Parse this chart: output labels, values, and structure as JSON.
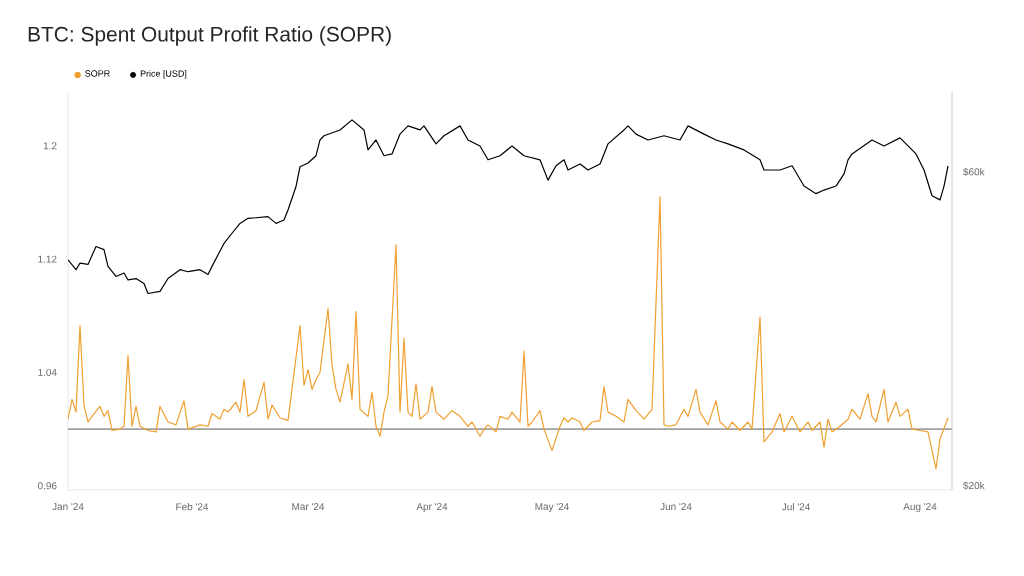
{
  "chart_data": {
    "type": "line",
    "title": "BTC: Spent Output Profit Ratio (SOPR)",
    "xlim": [
      "2024-01-01",
      "2024-08-09"
    ],
    "xticks": [
      {
        "value": "2024-01-01",
        "label": "Jan '24"
      },
      {
        "value": "2024-02-01",
        "label": "Feb '24"
      },
      {
        "value": "2024-03-01",
        "label": "Mar '24"
      },
      {
        "value": "2024-04-01",
        "label": "Apr '24"
      },
      {
        "value": "2024-05-01",
        "label": "May '24"
      },
      {
        "value": "2024-06-01",
        "label": "Jun '24"
      },
      {
        "value": "2024-07-01",
        "label": "Jul '24"
      },
      {
        "value": "2024-08-01",
        "label": "Aug '24"
      }
    ],
    "ylim": [
      0.957,
      1.238
    ],
    "yticks": [
      0.96,
      1.04,
      1.12,
      1.2
    ],
    "y2lim": [
      19700,
      79400
    ],
    "y2ticks": [
      {
        "value": 20000,
        "label": "$20k"
      },
      {
        "value": 60000,
        "label": "$60k"
      }
    ],
    "log": "y2",
    "legend": "top left",
    "ref_lines": [
      {
        "axis": "y",
        "value": 1,
        "color": "#a0a0a0"
      }
    ],
    "series": [
      {
        "name": "SOPR",
        "color": "#f0a030",
        "x": [
          "2024-01-01",
          "2024-01-02",
          "2024-01-03",
          "2024-01-04",
          "2024-01-05",
          "2024-01-06",
          "2024-01-07",
          "2024-01-09",
          "2024-01-10",
          "2024-01-11",
          "2024-01-12",
          "2024-01-14",
          "2024-01-15",
          "2024-01-16",
          "2024-01-17",
          "2024-01-18",
          "2024-01-19",
          "2024-01-21",
          "2024-01-23",
          "2024-01-24",
          "2024-01-26",
          "2024-01-28",
          "2024-01-30",
          "2024-01-31",
          "2024-02-03",
          "2024-02-05",
          "2024-02-06",
          "2024-02-08",
          "2024-02-09",
          "2024-02-10",
          "2024-02-12",
          "2024-02-13",
          "2024-02-14",
          "2024-02-15",
          "2024-02-17",
          "2024-02-19",
          "2024-02-20",
          "2024-02-21",
          "2024-02-23",
          "2024-02-25",
          "2024-02-26",
          "2024-02-28",
          "2024-02-29",
          "2024-03-01",
          "2024-03-02",
          "2024-03-03",
          "2024-03-04",
          "2024-03-06",
          "2024-03-07",
          "2024-03-08",
          "2024-03-09",
          "2024-03-11",
          "2024-03-12",
          "2024-03-13",
          "2024-03-14",
          "2024-03-16",
          "2024-03-17",
          "2024-03-18",
          "2024-03-19",
          "2024-03-20",
          "2024-03-21",
          "2024-03-23",
          "2024-03-24",
          "2024-03-25",
          "2024-03-26",
          "2024-03-27",
          "2024-03-28",
          "2024-03-29",
          "2024-03-31",
          "2024-04-01",
          "2024-04-02",
          "2024-04-04",
          "2024-04-06",
          "2024-04-08",
          "2024-04-10",
          "2024-04-11",
          "2024-04-13",
          "2024-04-14",
          "2024-04-15",
          "2024-04-17",
          "2024-04-18",
          "2024-04-20",
          "2024-04-21",
          "2024-04-23",
          "2024-04-24",
          "2024-04-25",
          "2024-04-26",
          "2024-04-28",
          "2024-04-29",
          "2024-05-01",
          "2024-05-03",
          "2024-05-04",
          "2024-05-05",
          "2024-05-06",
          "2024-05-08",
          "2024-05-09",
          "2024-05-11",
          "2024-05-13",
          "2024-05-14",
          "2024-05-15",
          "2024-05-17",
          "2024-05-19",
          "2024-05-20",
          "2024-05-22",
          "2024-05-24",
          "2024-05-26",
          "2024-05-28",
          "2024-05-29",
          "2024-05-30",
          "2024-06-01",
          "2024-06-03",
          "2024-06-04",
          "2024-06-06",
          "2024-06-07",
          "2024-06-09",
          "2024-06-11",
          "2024-06-12",
          "2024-06-14",
          "2024-06-15",
          "2024-06-17",
          "2024-06-19",
          "2024-06-20",
          "2024-06-22",
          "2024-06-23",
          "2024-06-25",
          "2024-06-27",
          "2024-06-28",
          "2024-06-30",
          "2024-07-02",
          "2024-07-04",
          "2024-07-05",
          "2024-07-07",
          "2024-07-08",
          "2024-07-09",
          "2024-07-10",
          "2024-07-12",
          "2024-07-14",
          "2024-07-15",
          "2024-07-17",
          "2024-07-19",
          "2024-07-20",
          "2024-07-21",
          "2024-07-23",
          "2024-07-24",
          "2024-07-26",
          "2024-07-27",
          "2024-07-29",
          "2024-07-30",
          "2024-08-01",
          "2024-08-03",
          "2024-08-05",
          "2024-08-06",
          "2024-08-08"
        ],
        "values": [
          1.007,
          1.021,
          1.012,
          1.073,
          1.017,
          1.005,
          1.009,
          1.016,
          1.009,
          1.013,
          0.999,
          1.0,
          1.002,
          1.052,
          1.002,
          1.016,
          1.002,
          0.999,
          0.998,
          1.016,
          1.005,
          1.003,
          1.02,
          1.0,
          1.003,
          1.002,
          1.011,
          1.007,
          1.014,
          1.012,
          1.019,
          1.012,
          1.035,
          1.009,
          1.013,
          1.033,
          1.007,
          1.017,
          1.008,
          1.006,
          1.028,
          1.073,
          1.031,
          1.042,
          1.028,
          1.035,
          1.04,
          1.085,
          1.045,
          1.028,
          1.019,
          1.046,
          1.021,
          1.083,
          1.014,
          1.009,
          1.026,
          1.002,
          0.995,
          1.012,
          1.024,
          1.13,
          1.012,
          1.064,
          1.012,
          1.009,
          1.032,
          1.007,
          1.012,
          1.03,
          1.012,
          1.007,
          1.013,
          1.009,
          1.002,
          1.005,
          0.995,
          1.0,
          1.003,
          0.998,
          1.009,
          1.007,
          1.012,
          1.005,
          1.055,
          1.002,
          1.005,
          1.013,
          1.0,
          0.985,
          1.002,
          1.008,
          1.005,
          1.008,
          1.005,
          0.999,
          1.005,
          1.006,
          1.03,
          1.012,
          1.009,
          1.005,
          1.021,
          1.013,
          1.007,
          1.014,
          1.164,
          1.003,
          1.002,
          1.003,
          1.014,
          1.009,
          1.028,
          1.012,
          1.003,
          1.02,
          1.005,
          1.0,
          1.005,
          0.999,
          1.005,
          1.0,
          1.079,
          0.991,
          0.998,
          1.011,
          0.998,
          1.009,
          0.998,
          1.005,
          0.999,
          1.005,
          0.987,
          1.007,
          0.998,
          1.002,
          1.007,
          1.014,
          1.007,
          1.025,
          1.009,
          1.005,
          1.028,
          1.005,
          1.019,
          1.009,
          1.014,
          1.0,
          0.999,
          0.998,
          0.972,
          0.993,
          1.008
        ]
      },
      {
        "name": "Price [USD]",
        "color": "#000000",
        "axis": "y2",
        "x": [
          "2024-01-01",
          "2024-01-03",
          "2024-01-04",
          "2024-01-06",
          "2024-01-08",
          "2024-01-10",
          "2024-01-11",
          "2024-01-13",
          "2024-01-15",
          "2024-01-16",
          "2024-01-18",
          "2024-01-20",
          "2024-01-21",
          "2024-01-24",
          "2024-01-26",
          "2024-01-29",
          "2024-01-31",
          "2024-02-03",
          "2024-02-05",
          "2024-02-06",
          "2024-02-09",
          "2024-02-11",
          "2024-02-13",
          "2024-02-15",
          "2024-02-17",
          "2024-02-20",
          "2024-02-22",
          "2024-02-24",
          "2024-02-25",
          "2024-02-27",
          "2024-02-28",
          "2024-03-01",
          "2024-03-03",
          "2024-03-04",
          "2024-03-05",
          "2024-03-09",
          "2024-03-12",
          "2024-03-15",
          "2024-03-16",
          "2024-03-18",
          "2024-03-20",
          "2024-03-22",
          "2024-03-24",
          "2024-03-26",
          "2024-03-29",
          "2024-03-30",
          "2024-04-02",
          "2024-04-04",
          "2024-04-08",
          "2024-04-10",
          "2024-04-13",
          "2024-04-15",
          "2024-04-18",
          "2024-04-21",
          "2024-04-24",
          "2024-04-28",
          "2024-04-30",
          "2024-05-02",
          "2024-05-04",
          "2024-05-05",
          "2024-05-08",
          "2024-05-10",
          "2024-05-13",
          "2024-05-14",
          "2024-05-15",
          "2024-05-19",
          "2024-05-20",
          "2024-05-22",
          "2024-05-25",
          "2024-05-29",
          "2024-06-02",
          "2024-06-04",
          "2024-06-08",
          "2024-06-11",
          "2024-06-14",
          "2024-06-18",
          "2024-06-22",
          "2024-06-23",
          "2024-06-27",
          "2024-06-30",
          "2024-07-03",
          "2024-07-06",
          "2024-07-08",
          "2024-07-11",
          "2024-07-13",
          "2024-07-14",
          "2024-07-15",
          "2024-07-20",
          "2024-07-23",
          "2024-07-27",
          "2024-07-31",
          "2024-08-02",
          "2024-08-04",
          "2024-08-06",
          "2024-08-07",
          "2024-08-08"
        ],
        "values": [
          44100,
          42600,
          43600,
          43400,
          46200,
          45700,
          43100,
          41600,
          42100,
          41100,
          41300,
          40600,
          39200,
          39500,
          41300,
          42600,
          42300,
          42600,
          41900,
          43100,
          46700,
          48400,
          50100,
          51000,
          51100,
          51300,
          50100,
          50700,
          52500,
          57000,
          61100,
          61900,
          63500,
          67100,
          68100,
          69500,
          72000,
          69500,
          64800,
          67100,
          63500,
          63900,
          68500,
          70500,
          69500,
          70500,
          66200,
          68100,
          70500,
          67100,
          65700,
          62600,
          63500,
          65700,
          63500,
          62600,
          58300,
          61300,
          62600,
          60400,
          61700,
          60400,
          61700,
          63900,
          66200,
          69500,
          70500,
          68500,
          67100,
          68100,
          67100,
          70500,
          68500,
          67100,
          66200,
          64800,
          62600,
          60400,
          60400,
          61300,
          57100,
          55600,
          56300,
          57100,
          59600,
          62600,
          63900,
          67100,
          65700,
          67600,
          63900,
          60400,
          55200,
          54400,
          57100,
          61300
        ]
      }
    ]
  }
}
